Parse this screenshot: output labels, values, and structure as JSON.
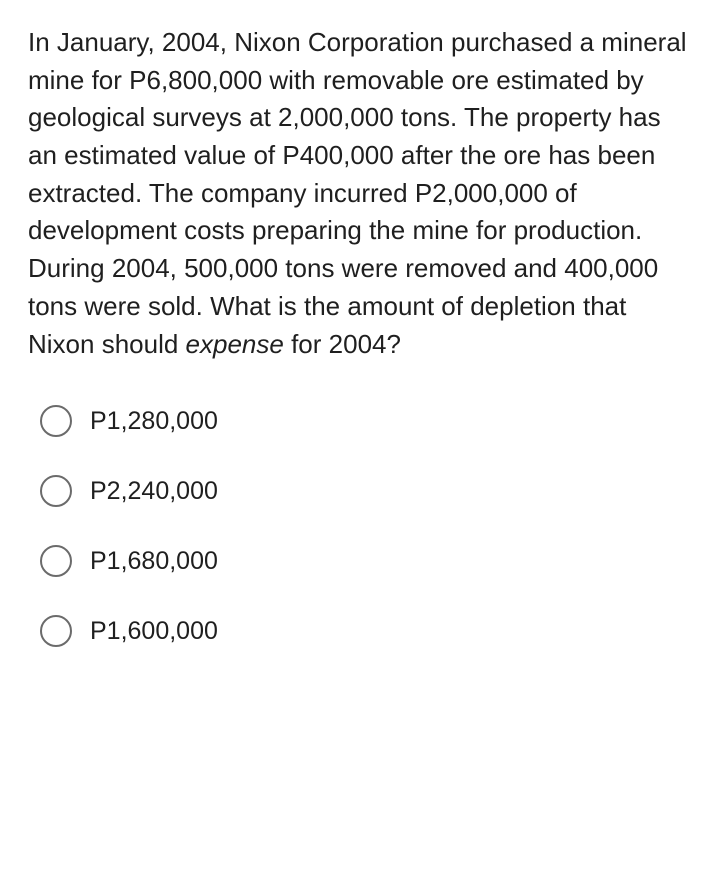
{
  "question": {
    "pre": "In January, 2004, Nixon Corporation purchased a mineral mine for P6,800,000 with removable ore estimated by geological surveys at 2,000,000 tons. The property has an estimated value of P400,000 after the ore has been extracted. The company incurred P2,000,000 of development costs preparing the mine for production. During 2004, 500,000 tons were removed and 400,000 tons were sold. What is the amount of depletion that Nixon should ",
    "italic": "expense",
    "post": " for 2004?"
  },
  "options": [
    {
      "label": "P1,280,000"
    },
    {
      "label": "P2,240,000"
    },
    {
      "label": "P1,680,000"
    },
    {
      "label": "P1,600,000"
    }
  ],
  "colors": {
    "background": "#ffffff",
    "text": "#1f1f1f",
    "radio_border": "#6b6b6b"
  },
  "typography": {
    "question_fontsize": 26,
    "option_fontsize": 25,
    "line_height": 1.45,
    "font_family": "Arial, Helvetica, sans-serif"
  }
}
